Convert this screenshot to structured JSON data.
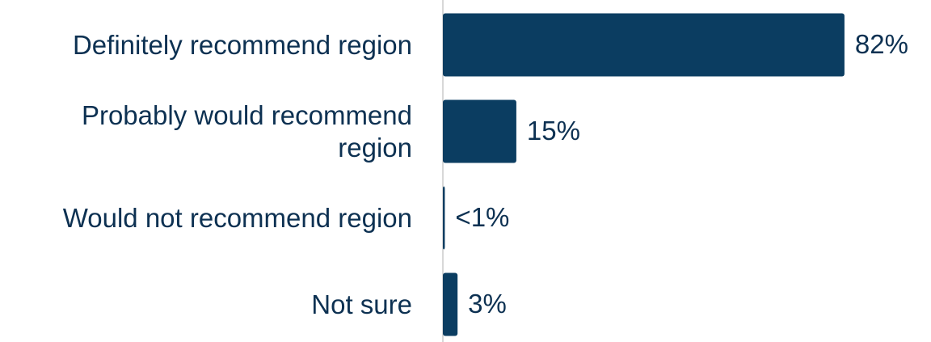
{
  "chart_data": {
    "type": "bar",
    "orientation": "horizontal",
    "categories": [
      "Definitely recommend region",
      "Probably would recommend region",
      "Would not recommend region",
      "Not sure"
    ],
    "values": [
      82,
      15,
      0.4,
      3
    ],
    "value_labels": [
      "82%",
      "15%",
      "<1%",
      "3%"
    ],
    "color": "#0b3d61"
  }
}
